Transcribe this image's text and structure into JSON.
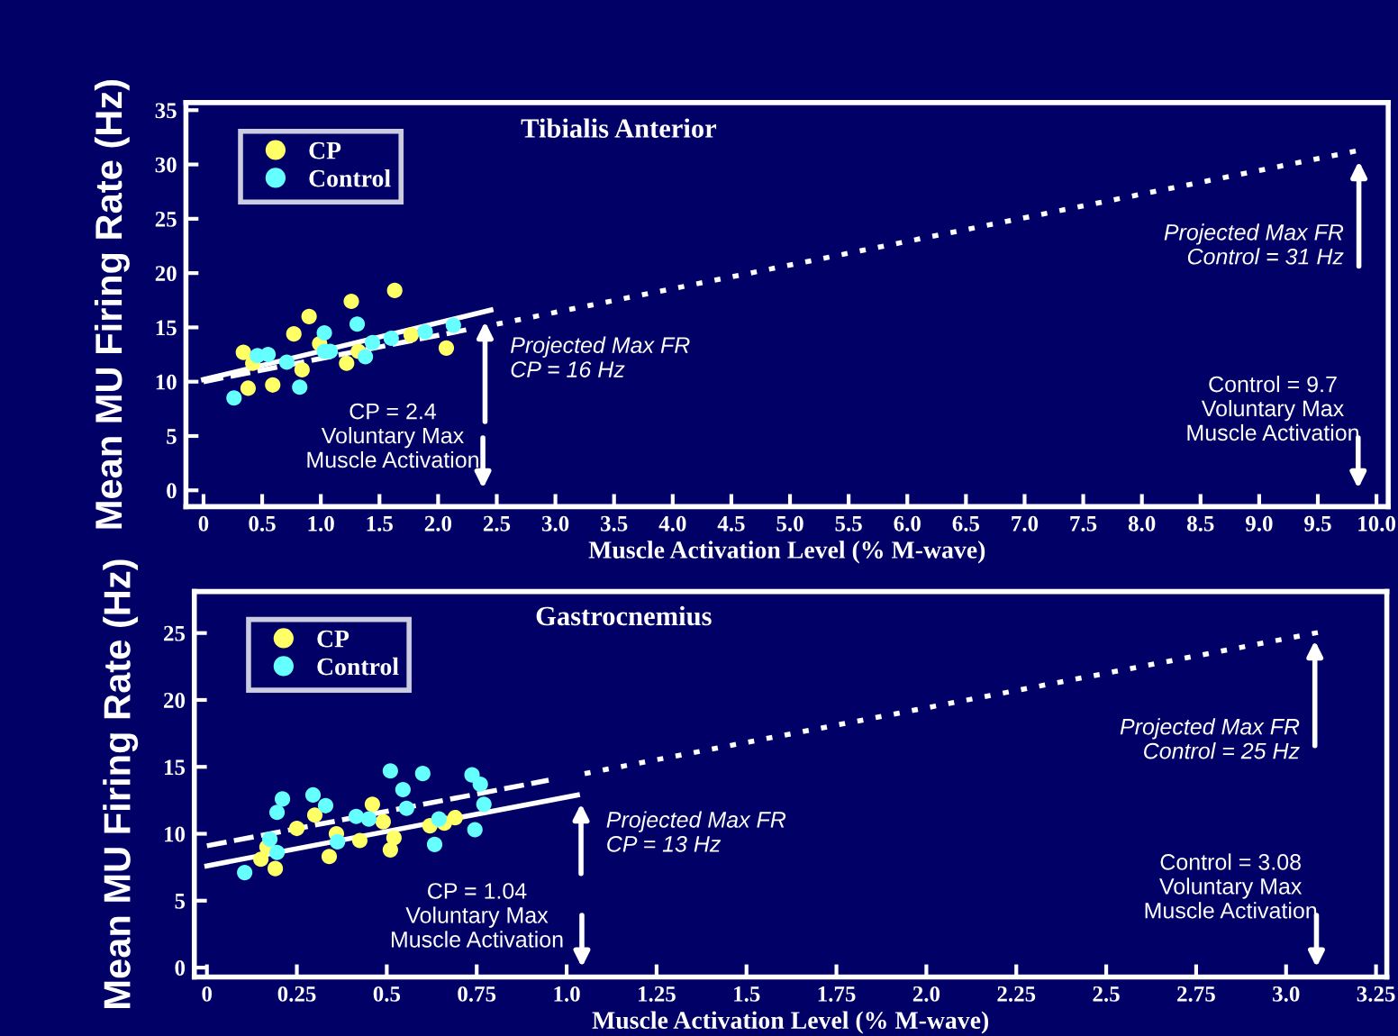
{
  "chart_data": [
    {
      "type": "scatter",
      "title": "Tibialis Anterior",
      "xlabel": "Muscle Activation Level (% M-wave)",
      "ylabel": "Mean MU Firing Rate (Hz)",
      "xlim": [
        -0.15,
        10.1
      ],
      "ylim": [
        -1.5,
        35.7
      ],
      "xticks": [
        0,
        0.5,
        {
          "value": 1,
          "label": "1.0"
        },
        1.5,
        {
          "value": 2,
          "label": "2.0"
        },
        2.5,
        {
          "value": 3,
          "label": "3.0"
        },
        3.5,
        {
          "value": 4,
          "label": "4.0"
        },
        4.5,
        {
          "value": 5,
          "label": "5.0"
        },
        5.5,
        {
          "value": 6,
          "label": "6.0"
        },
        6.5,
        {
          "value": 7,
          "label": "7.0"
        },
        7.5,
        {
          "value": 8,
          "label": "8.0"
        },
        8.5,
        {
          "value": 9,
          "label": "9.0"
        },
        9.5,
        {
          "value": 10,
          "label": "10.0"
        }
      ],
      "yticks": [
        0,
        5,
        10,
        15,
        20,
        25,
        30,
        35
      ],
      "legend": "top left",
      "marker": "circle",
      "grid": false,
      "series": [
        {
          "name": "CP",
          "color": "#ffff66",
          "x": [
            0.34,
            0.42,
            0.38,
            0.59,
            0.77,
            0.9,
            0.84,
            0.99,
            1.26,
            1.22,
            1.32,
            1.63,
            1.77,
            2.07
          ],
          "values": [
            12.7,
            11.7,
            9.4,
            9.7,
            14.4,
            16.0,
            11.1,
            13.5,
            17.4,
            11.7,
            12.8,
            18.4,
            14.3,
            13.1
          ]
        },
        {
          "name": "Control",
          "color": "#66ffff",
          "x": [
            0.26,
            0.46,
            0.55,
            0.71,
            0.82,
            1.03,
            1.03,
            1.08,
            1.31,
            1.38,
            1.44,
            1.6,
            1.89,
            2.13
          ],
          "values": [
            8.5,
            12.4,
            12.5,
            11.8,
            9.5,
            14.5,
            12.8,
            12.8,
            15.3,
            12.3,
            13.6,
            14.0,
            14.6,
            15.2
          ]
        },
        {
          "type": "line",
          "marker": "none",
          "color": "#ffffff",
          "line_style": "solid",
          "x": [
            0,
            2.45
          ],
          "values": [
            10.2,
            16.6
          ]
        },
        {
          "type": "line",
          "marker": "none",
          "color": "#ffffff",
          "line_style": "dashed",
          "x": [
            0,
            2.25
          ],
          "values": [
            10.0,
            14.8
          ]
        },
        {
          "type": "line",
          "marker": "none",
          "color": "#ffffff",
          "line_style": "dotted",
          "x": [
            2.5,
            9.85
          ],
          "values": [
            15.3,
            31.3
          ]
        }
      ],
      "annotations": [
        {
          "text": "Projected Max FR\nCP = 16 Hz",
          "x": 2.4,
          "y": 16
        },
        "CP = 2.4\nVoluntary Max\nMuscle Activation",
        {
          "text": "Projected Max FR\nControl = 31 Hz",
          "x": 9.85,
          "y": 31
        },
        "Control = 9.7\nVoluntary Max\nMuscle Activation"
      ]
    },
    {
      "type": "scatter",
      "title": "Gastrocnemius",
      "xlabel": "Muscle Activation Level (% M-wave)",
      "ylabel": "Mean MU Firing Rate (Hz)",
      "xlim": [
        -0.035,
        3.28
      ],
      "ylim": [
        -0.7,
        28.1
      ],
      "xticks": [
        0,
        0.25,
        0.5,
        0.75,
        {
          "value": 1,
          "label": "1.0"
        },
        1.25,
        1.5,
        1.75,
        {
          "value": 2,
          "label": "2.0"
        },
        2.25,
        2.5,
        2.75,
        {
          "value": 3,
          "label": "3.0"
        },
        3.25
      ],
      "yticks": [
        0,
        5,
        10,
        15,
        20,
        25
      ],
      "legend": "top left",
      "marker": "circle",
      "grid": false,
      "series": [
        {
          "name": "CP",
          "color": "#ffff66",
          "x": [
            0.167,
            0.15,
            0.19,
            0.25,
            0.3,
            0.34,
            0.36,
            0.425,
            0.46,
            0.49,
            0.52,
            0.51,
            0.62,
            0.66,
            0.69
          ],
          "values": [
            9.0,
            8.1,
            7.4,
            10.4,
            11.4,
            8.3,
            10.0,
            9.5,
            12.2,
            10.9,
            9.7,
            8.8,
            10.6,
            10.8,
            11.2
          ]
        },
        {
          "name": "Control",
          "color": "#66ffff",
          "x": [
            0.105,
            0.175,
            0.195,
            0.195,
            0.21,
            0.295,
            0.33,
            0.363,
            0.415,
            0.45,
            0.51,
            0.545,
            0.555,
            0.6,
            0.633,
            0.645,
            0.737,
            0.76,
            0.77,
            0.745
          ],
          "values": [
            7.1,
            9.6,
            8.6,
            11.6,
            12.6,
            12.9,
            12.1,
            9.4,
            11.3,
            11.1,
            14.7,
            13.3,
            11.9,
            14.5,
            9.2,
            11.1,
            14.4,
            13.7,
            12.2,
            10.3
          ]
        },
        {
          "type": "line",
          "marker": "none",
          "color": "#ffffff",
          "line_style": "solid",
          "x": [
            0,
            1.03
          ],
          "values": [
            7.6,
            12.9
          ]
        },
        {
          "type": "line",
          "marker": "none",
          "color": "#ffffff",
          "line_style": "dashed",
          "x": [
            0,
            0.95
          ],
          "values": [
            9.1,
            14.0
          ]
        },
        {
          "type": "line",
          "marker": "none",
          "color": "#ffffff",
          "line_style": "dotted",
          "x": [
            1.05,
            3.1
          ],
          "values": [
            14.5,
            25.1
          ]
        }
      ],
      "annotations": [
        {
          "text": "Projected Max FR\nCP = 13 Hz",
          "x": 1.04,
          "y": 13
        },
        "CP = 1.04\nVoluntary Max\nMuscle Activation",
        {
          "text": "Projected Max FR\nControl = 25 Hz",
          "x": 3.08,
          "y": 25
        },
        "Control = 3.08\nVoluntary Max\nMuscle Activation"
      ]
    }
  ]
}
